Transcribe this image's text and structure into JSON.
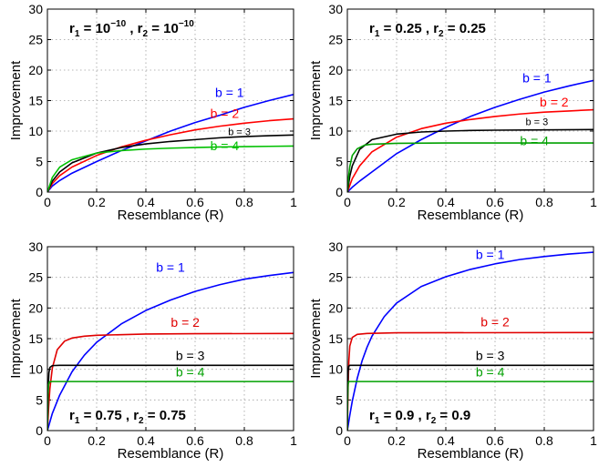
{
  "chart_data": [
    {
      "type": "line",
      "annotation": {
        "r1_base": "10",
        "r1_exp": "−10",
        "r2_base": "10",
        "r2_exp": "−10",
        "position": "top-left"
      },
      "xlabel": "Resemblance (R)",
      "ylabel": "Improvement",
      "xlim": [
        0,
        1
      ],
      "ylim": [
        0,
        30
      ],
      "xticks": [
        "0",
        "0.2",
        "0.4",
        "0.6",
        "0.8",
        "1"
      ],
      "yticks": [
        "0",
        "5",
        "10",
        "15",
        "20",
        "25",
        "30"
      ],
      "grid": true,
      "series": [
        {
          "name": "b = 1",
          "color": "#0000ff",
          "x": [
            0,
            0.02,
            0.05,
            0.1,
            0.2,
            0.3,
            0.4,
            0.5,
            0.6,
            0.7,
            0.8,
            0.9,
            1.0
          ],
          "y": [
            0,
            1.0,
            1.9,
            3.1,
            5.0,
            6.8,
            8.4,
            10.0,
            11.4,
            12.6,
            13.9,
            15.0,
            16.0
          ]
        },
        {
          "name": "b = 2",
          "color": "#ff0000",
          "x": [
            0,
            0.02,
            0.05,
            0.1,
            0.2,
            0.3,
            0.4,
            0.5,
            0.6,
            0.7,
            0.8,
            0.9,
            1.0
          ],
          "y": [
            0,
            1.4,
            2.7,
            4.1,
            6.0,
            7.4,
            8.5,
            9.4,
            10.2,
            10.8,
            11.3,
            11.7,
            12.0
          ]
        },
        {
          "name": "b = 3",
          "color": "#000000",
          "small": true,
          "x": [
            0,
            0.02,
            0.05,
            0.1,
            0.2,
            0.3,
            0.4,
            0.5,
            0.6,
            0.7,
            0.8,
            0.9,
            1.0
          ],
          "y": [
            0,
            1.8,
            3.3,
            4.8,
            6.4,
            7.3,
            7.9,
            8.3,
            8.6,
            8.9,
            9.1,
            9.25,
            9.35
          ]
        },
        {
          "name": "b = 4",
          "color": "#00c000",
          "x": [
            0,
            0.02,
            0.05,
            0.1,
            0.2,
            0.3,
            0.4,
            0.5,
            0.6,
            0.7,
            0.8,
            0.9,
            1.0
          ],
          "y": [
            0,
            2.4,
            4.1,
            5.3,
            6.4,
            6.8,
            7.05,
            7.2,
            7.3,
            7.4,
            7.45,
            7.5,
            7.55
          ]
        }
      ],
      "labels": [
        {
          "series": 0,
          "x": 0.74,
          "y": 15.6
        },
        {
          "series": 1,
          "x": 0.72,
          "y": 12.2
        },
        {
          "series": 2,
          "x": 0.78,
          "y": 9.3
        },
        {
          "series": 3,
          "x": 0.72,
          "y": 6.9
        }
      ]
    },
    {
      "type": "line",
      "annotation": {
        "r1_base": "0.25",
        "r2_base": "0.25",
        "position": "top-left"
      },
      "xlabel": "Resemblance (R)",
      "ylabel": "Improvement",
      "xlim": [
        0,
        1
      ],
      "ylim": [
        0,
        30
      ],
      "xticks": [
        "0",
        "0.2",
        "0.4",
        "0.6",
        "0.8",
        "1"
      ],
      "yticks": [
        "0",
        "5",
        "10",
        "15",
        "20",
        "25",
        "30"
      ],
      "grid": true,
      "series": [
        {
          "name": "b = 1",
          "color": "#0000ff",
          "x": [
            0,
            0.02,
            0.05,
            0.1,
            0.2,
            0.3,
            0.4,
            0.5,
            0.6,
            0.7,
            0.8,
            0.9,
            1.0
          ],
          "y": [
            0,
            0.8,
            1.8,
            3.3,
            6.3,
            8.6,
            10.6,
            12.4,
            13.9,
            15.2,
            16.4,
            17.4,
            18.3
          ]
        },
        {
          "name": "b = 2",
          "color": "#ff0000",
          "x": [
            0,
            0.02,
            0.05,
            0.1,
            0.2,
            0.3,
            0.4,
            0.5,
            0.6,
            0.7,
            0.8,
            0.9,
            1.0
          ],
          "y": [
            0,
            2.2,
            4.3,
            6.6,
            9.0,
            10.4,
            11.3,
            11.9,
            12.4,
            12.8,
            13.1,
            13.3,
            13.5
          ]
        },
        {
          "name": "b = 3",
          "color": "#000000",
          "small": true,
          "x": [
            0,
            0.01,
            0.02,
            0.05,
            0.1,
            0.2,
            0.3,
            0.4,
            0.5,
            0.6,
            0.8,
            1.0
          ],
          "y": [
            0,
            2.6,
            4.3,
            7.0,
            8.6,
            9.5,
            9.85,
            10.0,
            10.1,
            10.15,
            10.2,
            10.25
          ]
        },
        {
          "name": "b = 4",
          "color": "#00a000",
          "x": [
            0,
            0.005,
            0.01,
            0.02,
            0.04,
            0.07,
            0.1,
            0.2,
            0.4,
            0.6,
            1.0
          ],
          "y": [
            0,
            2.5,
            4.2,
            6.0,
            7.1,
            7.7,
            7.85,
            8.0,
            8.05,
            8.05,
            8.05
          ]
        }
      ],
      "labels": [
        {
          "series": 0,
          "x": 0.77,
          "y": 18.0
        },
        {
          "series": 1,
          "x": 0.84,
          "y": 14.0
        },
        {
          "series": 2,
          "x": 0.77,
          "y": 11.0
        },
        {
          "series": 3,
          "x": 0.76,
          "y": 7.7
        }
      ]
    },
    {
      "type": "line",
      "annotation": {
        "r1_base": "0.75",
        "r2_base": "0.75",
        "position": "bottom-left"
      },
      "xlabel": "Resemblance (R)",
      "ylabel": "Improvement",
      "xlim": [
        0,
        1
      ],
      "ylim": [
        0,
        30
      ],
      "xticks": [
        "0",
        "0.2",
        "0.4",
        "0.6",
        "0.8",
        "1"
      ],
      "yticks": [
        "0",
        "5",
        "10",
        "15",
        "20",
        "25",
        "30"
      ],
      "grid": true,
      "series": [
        {
          "name": "b = 1",
          "color": "#0000ff",
          "x": [
            0,
            0.02,
            0.05,
            0.1,
            0.15,
            0.2,
            0.3,
            0.4,
            0.5,
            0.6,
            0.7,
            0.8,
            0.9,
            1.0
          ],
          "y": [
            0,
            2.8,
            5.8,
            9.6,
            12.3,
            14.4,
            17.4,
            19.6,
            21.3,
            22.7,
            23.8,
            24.7,
            25.3,
            25.8
          ]
        },
        {
          "name": "b = 2",
          "color": "#e00000",
          "x": [
            0,
            0.005,
            0.01,
            0.02,
            0.04,
            0.07,
            0.1,
            0.15,
            0.2,
            0.4,
            0.6,
            1.0
          ],
          "y": [
            0,
            3.8,
            6.8,
            10.2,
            13.2,
            14.6,
            15.1,
            15.4,
            15.55,
            15.75,
            15.8,
            15.85
          ]
        },
        {
          "name": "b = 3",
          "color": "#000000",
          "x": [
            0,
            0.003,
            0.006,
            0.01,
            0.02,
            0.05,
            1.0
          ],
          "y": [
            0,
            6.5,
            9.4,
            10.3,
            10.6,
            10.65,
            10.65
          ]
        },
        {
          "name": "b = 4",
          "color": "#00a000",
          "x": [
            0,
            0.002,
            0.004,
            0.008,
            0.02,
            1.0
          ],
          "y": [
            0,
            5.5,
            7.4,
            7.95,
            8.0,
            8.0
          ]
        }
      ],
      "labels": [
        {
          "series": 0,
          "x": 0.5,
          "y": 25.9
        },
        {
          "series": 1,
          "x": 0.56,
          "y": 16.9
        },
        {
          "series": 2,
          "x": 0.58,
          "y": 11.5
        },
        {
          "series": 3,
          "x": 0.58,
          "y": 8.8
        }
      ]
    },
    {
      "type": "line",
      "annotation": {
        "r1_base": "0.9",
        "r2_base": "0.9",
        "position": "bottom-left"
      },
      "xlabel": "Resemblance (R)",
      "ylabel": "Improvement",
      "xlim": [
        0,
        1
      ],
      "ylim": [
        0,
        30
      ],
      "xticks": [
        "0",
        "0.2",
        "0.4",
        "0.6",
        "0.8",
        "1"
      ],
      "yticks": [
        "0",
        "5",
        "10",
        "15",
        "20",
        "25",
        "30"
      ],
      "grid": true,
      "series": [
        {
          "name": "b = 1",
          "color": "#0000ff",
          "x": [
            0,
            0.01,
            0.02,
            0.04,
            0.06,
            0.08,
            0.1,
            0.15,
            0.2,
            0.3,
            0.4,
            0.5,
            0.6,
            0.7,
            0.8,
            0.9,
            1.0
          ],
          "y": [
            0,
            2.5,
            4.8,
            8.5,
            11.4,
            13.6,
            15.4,
            18.6,
            20.8,
            23.5,
            25.1,
            26.3,
            27.2,
            27.9,
            28.4,
            28.8,
            29.1
          ]
        },
        {
          "name": "b = 2",
          "color": "#e00000",
          "x": [
            0,
            0.003,
            0.006,
            0.01,
            0.02,
            0.04,
            0.08,
            0.2,
            1.0
          ],
          "y": [
            0,
            7.0,
            11.3,
            13.8,
            15.2,
            15.7,
            15.85,
            15.95,
            16.0
          ]
        },
        {
          "name": "b = 3",
          "color": "#000000",
          "x": [
            0,
            0.001,
            0.003,
            0.006,
            0.01,
            1.0
          ],
          "y": [
            0,
            5.5,
            9.6,
            10.5,
            10.65,
            10.65
          ]
        },
        {
          "name": "b = 4",
          "color": "#00a000",
          "x": [
            0,
            0.001,
            0.003,
            0.006,
            1.0
          ],
          "y": [
            0,
            5.0,
            7.6,
            8.0,
            8.0
          ]
        }
      ],
      "labels": [
        {
          "series": 0,
          "x": 0.58,
          "y": 28.0
        },
        {
          "series": 1,
          "x": 0.6,
          "y": 17.0
        },
        {
          "series": 2,
          "x": 0.58,
          "y": 11.5
        },
        {
          "series": 3,
          "x": 0.58,
          "y": 8.8
        }
      ]
    }
  ]
}
